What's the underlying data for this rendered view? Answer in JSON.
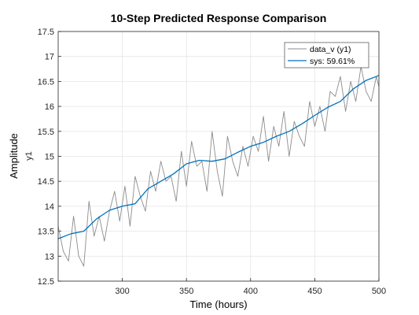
{
  "chart_data": {
    "type": "line",
    "title": "10-Step Predicted Response Comparison",
    "xlabel": "Time (hours)",
    "ylabel": "Amplitude",
    "ylabel_sub": "y1",
    "xlim": [
      250,
      500
    ],
    "ylim": [
      12.5,
      17.5
    ],
    "xticks": [
      300,
      350,
      400,
      450,
      500
    ],
    "yticks": [
      12.5,
      13,
      13.5,
      14,
      14.5,
      15,
      15.5,
      16,
      16.5,
      17,
      17.5
    ],
    "grid": true,
    "legend_position": "top-right",
    "colors": {
      "data": "#8c8c8c",
      "model": "#0072bd",
      "grid": "#e6e6e6",
      "axis": "#262626"
    },
    "series": [
      {
        "name": "data_v (y1)",
        "x": [
          250,
          254,
          258,
          262,
          266,
          270,
          274,
          278,
          282,
          286,
          290,
          294,
          298,
          302,
          306,
          310,
          314,
          318,
          322,
          326,
          330,
          334,
          338,
          342,
          346,
          350,
          354,
          358,
          362,
          366,
          370,
          374,
          378,
          382,
          386,
          390,
          394,
          398,
          402,
          406,
          410,
          414,
          418,
          422,
          426,
          430,
          434,
          438,
          442,
          446,
          450,
          454,
          458,
          462,
          466,
          470,
          474,
          478,
          482,
          486,
          490,
          494,
          498,
          500
        ],
        "y": [
          13.6,
          13.1,
          12.9,
          13.8,
          13.0,
          12.8,
          14.1,
          13.4,
          13.8,
          13.3,
          13.9,
          14.3,
          13.7,
          14.4,
          13.6,
          14.6,
          14.2,
          13.9,
          14.7,
          14.3,
          14.9,
          14.5,
          14.6,
          14.1,
          15.1,
          14.4,
          15.3,
          14.8,
          14.9,
          14.3,
          15.5,
          14.7,
          14.2,
          15.4,
          14.9,
          14.6,
          15.2,
          14.8,
          15.4,
          15.1,
          15.8,
          14.9,
          15.6,
          15.2,
          15.9,
          15.0,
          15.7,
          15.4,
          15.2,
          16.1,
          15.6,
          16.0,
          15.5,
          16.3,
          16.2,
          16.6,
          15.9,
          16.5,
          16.1,
          16.8,
          16.3,
          16.1,
          16.6,
          16.4
        ]
      },
      {
        "name": "sys: 59.61%",
        "x": [
          250,
          260,
          270,
          280,
          290,
          300,
          310,
          320,
          330,
          340,
          350,
          360,
          370,
          380,
          390,
          400,
          410,
          420,
          430,
          440,
          450,
          460,
          470,
          480,
          490,
          500
        ],
        "y": [
          13.35,
          13.45,
          13.5,
          13.75,
          13.92,
          14.0,
          14.05,
          14.35,
          14.5,
          14.65,
          14.85,
          14.92,
          14.9,
          14.95,
          15.08,
          15.2,
          15.28,
          15.4,
          15.5,
          15.65,
          15.82,
          15.98,
          16.1,
          16.35,
          16.52,
          16.62
        ]
      }
    ]
  }
}
